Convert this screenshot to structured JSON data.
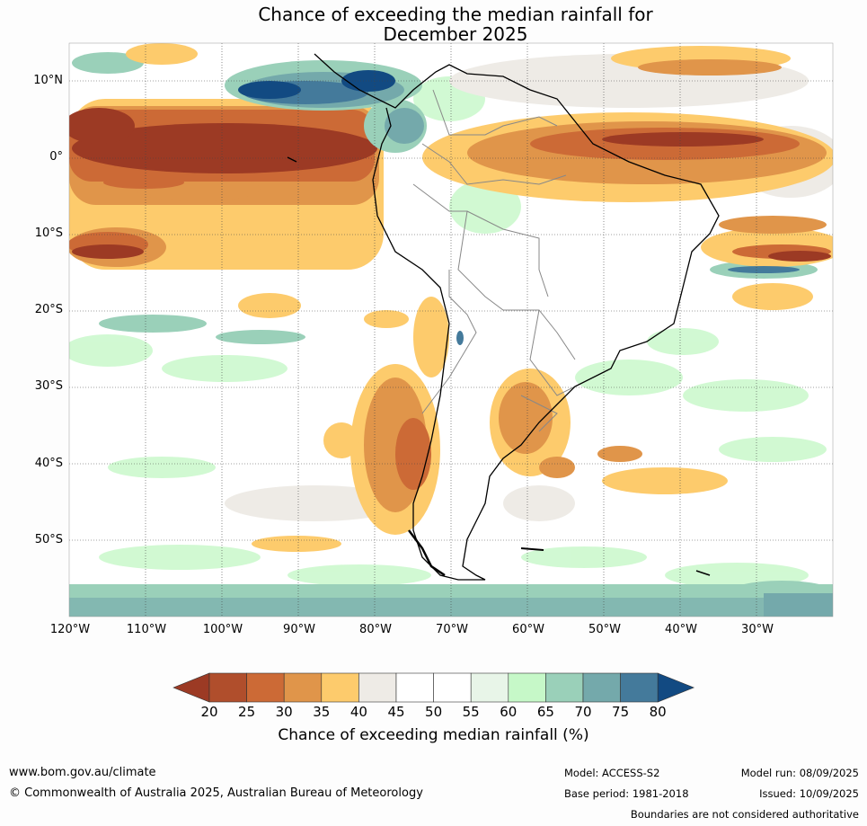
{
  "title": {
    "line1": "Chance of exceeding the median rainfall for",
    "line2": "December 2025"
  },
  "map": {
    "lat_ticks": [
      "10°N",
      "0°",
      "10°S",
      "20°S",
      "30°S",
      "40°S",
      "50°S"
    ],
    "lon_ticks": [
      "120°W",
      "110°W",
      "100°W",
      "90°W",
      "80°W",
      "70°W",
      "60°W",
      "50°W",
      "40°W",
      "30°W"
    ]
  },
  "colorbar": {
    "labels": [
      "20",
      "25",
      "30",
      "35",
      "40",
      "45",
      "50",
      "55",
      "60",
      "65",
      "70",
      "75",
      "80"
    ],
    "colors": [
      "#9c3a24",
      "#b04e2c",
      "#cc6a36",
      "#e0954a",
      "#fdcb6c",
      "#eeebe6",
      "#ffffff",
      "#ffffff",
      "#e8f5e8",
      "#c6f8c8",
      "#9ad0b9",
      "#74a9ab",
      "#447a9b",
      "#124a82"
    ],
    "title": "Chance of exceeding median rainfall (%)"
  },
  "footer": {
    "url": "www.bom.gov.au/climate",
    "copyright": "© Commonwealth of Australia 2025, Australian Bureau of Meteorology",
    "model": "Model: ACCESS-S2",
    "base_period": "Base period: 1981-2018",
    "model_run": "Model run: 08/09/2025",
    "issued": "Issued: 10/09/2025",
    "disclaimer": "Boundaries are not considered authoritative"
  }
}
